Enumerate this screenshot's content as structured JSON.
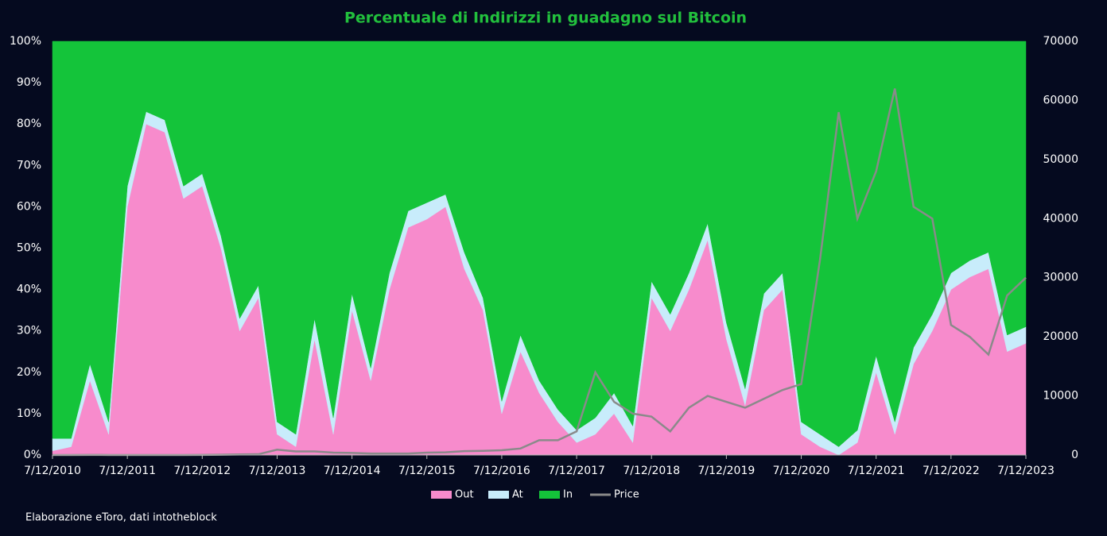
{
  "chart_data": {
    "type": "stacked_area_line",
    "title": "Percentuale di Indirizzi in guadagno sul Bitcoin",
    "note": "Elaborazione eToro, dati intotheblock",
    "categories": [
      "7/12/2010",
      null,
      null,
      null,
      "7/12/2011",
      null,
      null,
      null,
      "7/12/2012",
      null,
      null,
      null,
      "7/12/2013",
      null,
      null,
      null,
      "7/12/2014",
      null,
      null,
      null,
      "7/12/2015",
      null,
      null,
      null,
      "7/12/2016",
      null,
      null,
      null,
      "7/12/2017",
      null,
      null,
      null,
      "7/12/2018",
      null,
      null,
      null,
      "7/12/2019",
      null,
      null,
      null,
      "7/12/2020",
      null,
      null,
      null,
      "7/12/2021",
      null,
      null,
      null,
      "7/12/2022",
      null,
      null,
      null,
      "7/12/2023"
    ],
    "series": [
      {
        "name": "Out",
        "color": "#f78bcc",
        "values": [
          1,
          2,
          18,
          5,
          60,
          80,
          78,
          62,
          65,
          50,
          30,
          38,
          5,
          2,
          28,
          5,
          35,
          18,
          40,
          55,
          57,
          60,
          45,
          35,
          10,
          25,
          15,
          8,
          3,
          5,
          10,
          3,
          38,
          30,
          40,
          52,
          28,
          12,
          35,
          40,
          5,
          2,
          0,
          3,
          20,
          5,
          22,
          30,
          40,
          43,
          45,
          25,
          27
        ]
      },
      {
        "name": "At",
        "color": "#c8ecfb",
        "values": [
          3,
          2,
          4,
          3,
          5,
          3,
          3,
          3,
          3,
          3,
          3,
          3,
          3,
          3,
          5,
          4,
          4,
          3,
          4,
          4,
          4,
          3,
          4,
          3,
          3,
          4,
          3,
          3,
          3,
          4,
          5,
          4,
          4,
          4,
          4,
          4,
          4,
          4,
          4,
          4,
          3,
          3,
          2,
          3,
          4,
          3,
          4,
          4,
          4,
          4,
          4,
          4,
          4
        ]
      },
      {
        "name": "In",
        "color": "#14c43a",
        "values": [
          96,
          96,
          78,
          92,
          35,
          17,
          19,
          35,
          32,
          47,
          67,
          59,
          92,
          95,
          67,
          91,
          61,
          79,
          56,
          41,
          39,
          37,
          51,
          62,
          87,
          71,
          82,
          89,
          94,
          91,
          85,
          93,
          58,
          66,
          56,
          44,
          68,
          84,
          61,
          56,
          92,
          95,
          98,
          94,
          76,
          92,
          74,
          66,
          56,
          53,
          51,
          71,
          69
        ]
      },
      {
        "name": "Price",
        "color": "#8a8a8a",
        "axis": "y2",
        "values": [
          0.3,
          1,
          15,
          5,
          3,
          5,
          5,
          6,
          13,
          50,
          100,
          130,
          900,
          600,
          600,
          400,
          350,
          250,
          250,
          250,
          400,
          450,
          650,
          700,
          800,
          1100,
          2500,
          2500,
          4000,
          14000,
          9000,
          7000,
          6500,
          4000,
          8000,
          10000,
          9000,
          8000,
          9500,
          11000,
          12000,
          33000,
          58000,
          40000,
          48000,
          62000,
          42000,
          40000,
          22000,
          20000,
          17000,
          27000,
          30000
        ]
      }
    ],
    "ylim": [
      0,
      100
    ],
    "yticks": [
      {
        "value": 0,
        "label": "0%"
      },
      {
        "value": 10,
        "label": "10%"
      },
      {
        "value": 20,
        "label": "20%"
      },
      {
        "value": 30,
        "label": "30%"
      },
      {
        "value": 40,
        "label": "40%"
      },
      {
        "value": 50,
        "label": "50%"
      },
      {
        "value": 60,
        "label": "60%"
      },
      {
        "value": 70,
        "label": "70%"
      },
      {
        "value": 80,
        "label": "80%"
      },
      {
        "value": 90,
        "label": "90%"
      },
      {
        "value": 100,
        "label": "100%"
      }
    ],
    "y2lim": [
      0,
      70000
    ],
    "y2ticks": [
      0,
      10000,
      20000,
      30000,
      40000,
      50000,
      60000,
      70000
    ],
    "legend": "bottom"
  }
}
